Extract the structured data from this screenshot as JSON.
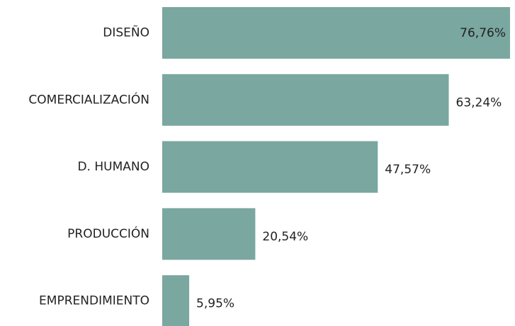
{
  "chart_data": {
    "type": "bar",
    "orientation": "horizontal",
    "categories": [
      "DISEÑO",
      "COMERCIALIZACIÓN",
      "D. HUMANO",
      "PRODUCCIÓN",
      "EMPRENDIMIENTO"
    ],
    "values": [
      76.76,
      63.24,
      47.57,
      20.54,
      5.95
    ],
    "value_labels": [
      "76,76%",
      "63,24%",
      "47,57%",
      "20,54%",
      "5,95%"
    ],
    "color": "#7aa7a0"
  }
}
